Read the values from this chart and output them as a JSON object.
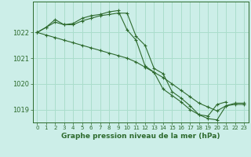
{
  "title": "Graphe pression niveau de la mer (hPa)",
  "background_color": "#cceee8",
  "grid_color": "#aaddcc",
  "line_color": "#2d6a2d",
  "xlim": [
    -0.5,
    23.5
  ],
  "ylim": [
    1018.5,
    1023.2
  ],
  "yticks": [
    1019,
    1020,
    1021,
    1022
  ],
  "xticks": [
    0,
    1,
    2,
    3,
    4,
    5,
    6,
    7,
    8,
    9,
    10,
    11,
    12,
    13,
    14,
    15,
    16,
    17,
    18,
    19,
    20,
    21,
    22,
    23
  ],
  "series": [
    {
      "x": [
        0,
        1,
        2,
        3,
        4,
        5,
        6,
        7,
        8,
        9,
        10,
        11,
        12,
        13,
        14,
        15,
        16,
        17,
        18,
        19,
        20,
        21,
        22,
        23
      ],
      "y": [
        1022.0,
        1022.2,
        1022.5,
        1022.3,
        1022.35,
        1022.55,
        1022.65,
        1022.7,
        1022.8,
        1022.85,
        1022.1,
        1021.7,
        1020.7,
        1020.45,
        1019.8,
        1019.55,
        1019.3,
        1019.0,
        1018.8,
        1018.75,
        1019.2,
        1019.3,
        null,
        null
      ]
    },
    {
      "x": [
        0,
        1,
        2,
        3,
        4,
        5,
        6,
        7,
        8,
        9,
        10,
        11,
        12,
        13,
        14,
        15,
        16,
        17,
        18,
        19,
        20,
        21,
        22,
        23
      ],
      "y": [
        1022.0,
        1022.2,
        1022.4,
        1022.3,
        1022.3,
        1022.45,
        1022.55,
        1022.65,
        1022.7,
        1022.75,
        1022.75,
        1021.85,
        1021.5,
        1020.6,
        1020.4,
        1019.7,
        1019.45,
        1019.15,
        1018.8,
        1018.65,
        1018.6,
        1019.15,
        1019.25,
        1019.25
      ]
    },
    {
      "x": [
        0,
        1,
        2,
        3,
        4,
        5,
        6,
        7,
        8,
        9,
        10,
        11,
        12,
        13,
        14,
        15,
        16,
        17,
        18,
        19,
        20,
        21,
        22,
        23
      ],
      "y": [
        1022.0,
        1021.9,
        1021.8,
        1021.7,
        1021.6,
        1021.5,
        1021.4,
        1021.3,
        1021.2,
        1021.1,
        1021.0,
        1020.85,
        1020.65,
        1020.45,
        1020.25,
        1020.0,
        1019.75,
        1019.5,
        1019.25,
        1019.1,
        1018.95,
        1019.15,
        1019.2,
        1019.2
      ]
    }
  ]
}
